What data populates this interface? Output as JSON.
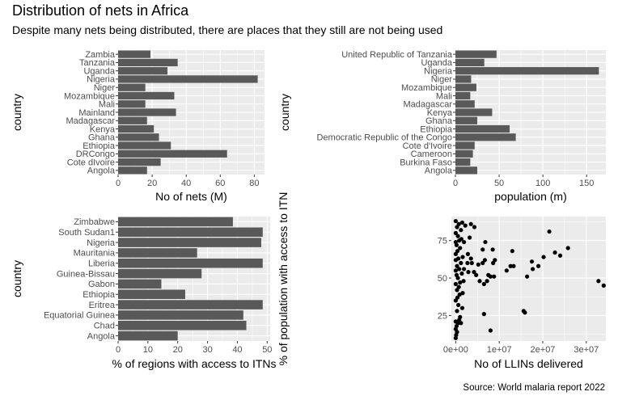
{
  "title": "Distribution of nets in Africa",
  "subtitle": "Despite many nets being distributed, there are places that they still are not being used",
  "caption": "Source: World malaria report 2022",
  "colors": {
    "panel": "#ebebeb",
    "grid": "#ffffff",
    "bar": "#595959",
    "point": "#000000",
    "tick_text": "#4d4d4d"
  },
  "chart_data": [
    {
      "type": "bar",
      "orientation": "horizontal",
      "xlabel": "No of nets (M)",
      "ylabel": "country",
      "xlim": [
        0,
        86
      ],
      "xticks": [
        0,
        20,
        40,
        60,
        80
      ],
      "categories": [
        "Angola",
        "Cote dIvoire",
        "DRCongo",
        "Ethiopia",
        "Ghana",
        "Kenya",
        "Madagascar",
        "Mainland",
        "Mali",
        "Mozambique",
        "Niger",
        "Nigeria",
        "Uganda",
        "Tanzania",
        "Zambia"
      ],
      "values": [
        17,
        25,
        64,
        31,
        24,
        21,
        17,
        34,
        16,
        33,
        16,
        82,
        29,
        35,
        19
      ],
      "grid": true
    },
    {
      "type": "bar",
      "orientation": "horizontal",
      "xlabel": "population (m)",
      "ylabel": "country",
      "xlim": [
        0,
        172
      ],
      "xticks": [
        0,
        50,
        100,
        150
      ],
      "categories": [
        "Angola",
        "Burkina Faso",
        "Cameroon",
        "Cote d'Ivoire",
        "Democratic Republic of the Congo",
        "Ethiopia",
        "Ghana",
        "Kenya",
        "Madagascar",
        "Mali",
        "Mozambique",
        "Niger",
        "Nigeria",
        "Uganda",
        "United Republic of Tanzania"
      ],
      "values": [
        25,
        17,
        20,
        22,
        69,
        62,
        25,
        42,
        22,
        17,
        24,
        18,
        164,
        33,
        47
      ],
      "grid": true
    },
    {
      "type": "bar",
      "orientation": "horizontal",
      "xlabel": "% of regions with access to ITNs",
      "ylabel": "country",
      "xlim": [
        0,
        51
      ],
      "xticks": [
        0,
        10,
        20,
        30,
        40,
        50
      ],
      "categories": [
        "Angola",
        "Chad",
        "Equatorial Guinea",
        "Eritrea",
        "Ethiopia",
        "Gabon",
        "Guinea-Bissau",
        "Liberia",
        "Mauritania",
        "Nigeria",
        "South Sudan1",
        "Zimbabwe"
      ],
      "values": [
        20,
        43,
        42,
        48.5,
        22.5,
        14.5,
        28,
        48.5,
        26.5,
        48,
        48.5,
        38.5
      ],
      "grid": true
    },
    {
      "type": "scatter",
      "xlabel": "No of LLINs delivered",
      "ylabel": "% of population with access to ITN",
      "xlim": [
        -1000000,
        34500000
      ],
      "ylim": [
        8,
        91
      ],
      "xticks": [
        0,
        10000000,
        20000000,
        30000000
      ],
      "xtick_labels": [
        "0e+00",
        "1e+07",
        "2e+07",
        "3e+07"
      ],
      "yticks": [
        25,
        50,
        75
      ],
      "grid": true,
      "points": [
        [
          0,
          10
        ],
        [
          100000,
          12
        ],
        [
          300000,
          14
        ],
        [
          0,
          16
        ],
        [
          200000,
          18
        ],
        [
          500000,
          20
        ],
        [
          800000,
          22
        ],
        [
          0,
          21
        ],
        [
          1200000,
          20
        ],
        [
          1000000,
          24
        ],
        [
          300000,
          28
        ],
        [
          600000,
          32
        ],
        [
          1500000,
          30
        ],
        [
          0,
          35
        ],
        [
          400000,
          37
        ],
        [
          900000,
          39
        ],
        [
          1600000,
          40
        ],
        [
          300000,
          42
        ],
        [
          700000,
          44
        ],
        [
          0,
          46
        ],
        [
          1000000,
          47
        ],
        [
          1800000,
          48
        ],
        [
          500000,
          50
        ],
        [
          200000,
          52
        ],
        [
          1400000,
          53
        ],
        [
          0,
          55
        ],
        [
          800000,
          56
        ],
        [
          1900000,
          56
        ],
        [
          300000,
          58
        ],
        [
          1200000,
          60
        ],
        [
          0,
          62
        ],
        [
          600000,
          63
        ],
        [
          1600000,
          64
        ],
        [
          0,
          66
        ],
        [
          400000,
          68
        ],
        [
          1000000,
          70
        ],
        [
          200000,
          72
        ],
        [
          0,
          74
        ],
        [
          800000,
          75
        ],
        [
          1300000,
          76
        ],
        [
          1900000,
          74
        ],
        [
          500000,
          78
        ],
        [
          0,
          80
        ],
        [
          1200000,
          82
        ],
        [
          300000,
          84
        ],
        [
          700000,
          86
        ],
        [
          0,
          88
        ],
        [
          1500000,
          87
        ],
        [
          2200000,
          85
        ],
        [
          2800000,
          66
        ],
        [
          2700000,
          60
        ],
        [
          2900000,
          54
        ],
        [
          3500000,
          86
        ],
        [
          3200000,
          77
        ],
        [
          3700000,
          60
        ],
        [
          4200000,
          54
        ],
        [
          4700000,
          52
        ],
        [
          5200000,
          59
        ],
        [
          5500000,
          48
        ],
        [
          6200000,
          60
        ],
        [
          6700000,
          62
        ],
        [
          7500000,
          52
        ],
        [
          8000000,
          51
        ],
        [
          8800000,
          51
        ],
        [
          7200000,
          48
        ],
        [
          6500000,
          46
        ],
        [
          3500000,
          63
        ],
        [
          4300000,
          84
        ],
        [
          6200000,
          69
        ],
        [
          6800000,
          74
        ],
        [
          8500000,
          69
        ],
        [
          8600000,
          60
        ],
        [
          9000000,
          62
        ],
        [
          12600000,
          58
        ],
        [
          13300000,
          58
        ],
        [
          13000000,
          68
        ],
        [
          11700000,
          55
        ],
        [
          16400000,
          51
        ],
        [
          17500000,
          61
        ],
        [
          17700000,
          56
        ],
        [
          19000000,
          58
        ],
        [
          20200000,
          64
        ],
        [
          21500000,
          81
        ],
        [
          22800000,
          67
        ],
        [
          24000000,
          65
        ],
        [
          25800000,
          70
        ],
        [
          32800000,
          48
        ],
        [
          34000000,
          45
        ],
        [
          15600000,
          28
        ],
        [
          15900000,
          27
        ],
        [
          6500000,
          26
        ],
        [
          8000000,
          15
        ]
      ]
    }
  ]
}
